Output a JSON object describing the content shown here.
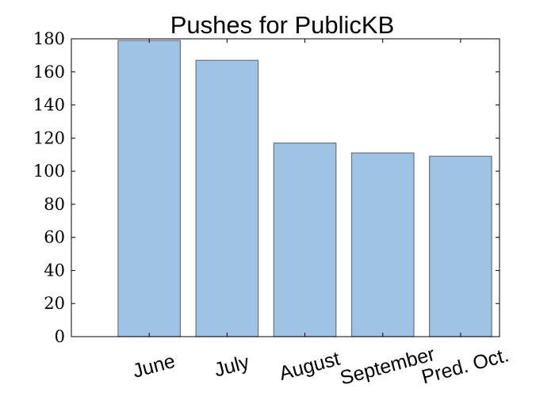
{
  "chart_data": {
    "type": "bar",
    "title": "Pushes for PublicKB",
    "categories": [
      "June",
      "July",
      "August",
      "September",
      "Pred. Oct."
    ],
    "values": [
      179,
      167,
      117,
      111,
      109
    ],
    "xlabel": "",
    "ylabel": "",
    "ylim": [
      0,
      180
    ],
    "yticks": [
      0,
      20,
      40,
      60,
      80,
      100,
      120,
      140,
      160,
      180
    ],
    "xtick_rotation_deg": 15,
    "grid": false,
    "legend": "none",
    "colors": {
      "bar_fill": "#a0c2e4",
      "bar_edge": "#6a737c",
      "axis": "#000000"
    }
  }
}
